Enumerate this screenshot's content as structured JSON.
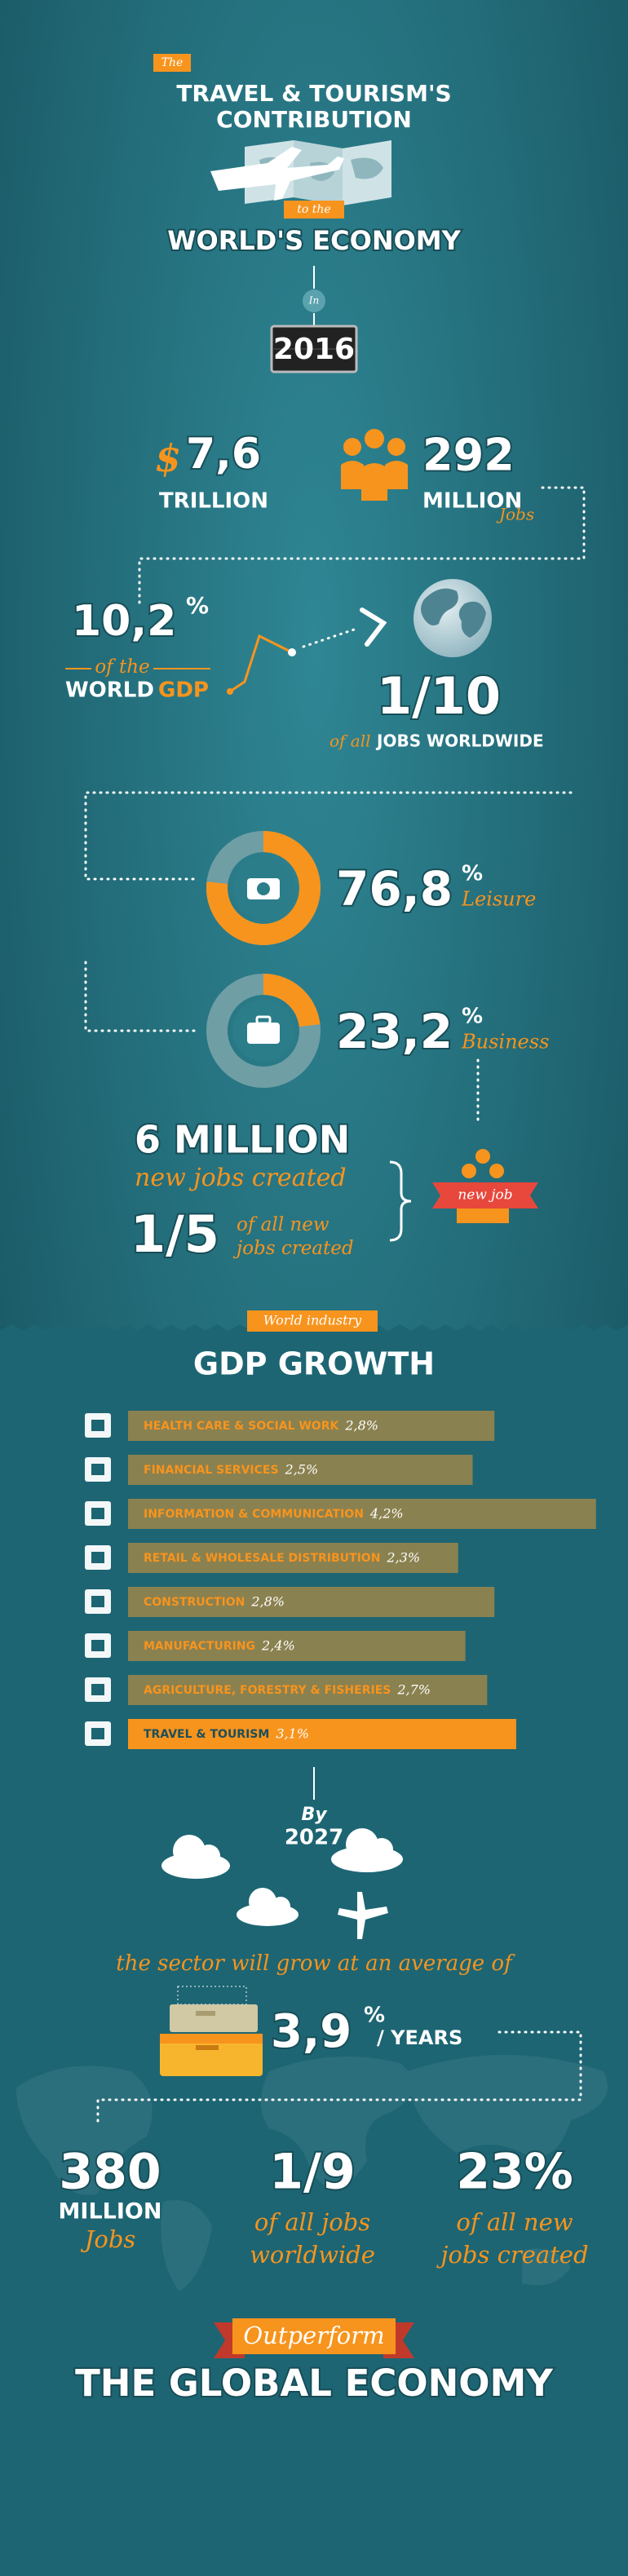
{
  "header": {
    "tag": "The",
    "title": [
      "TRAVEL & TOURISM'S",
      "CONTRIBUTION"
    ],
    "tag2": "to the",
    "subtitle": "WORLD'S ECONOMY",
    "in": "In",
    "year": "2016"
  },
  "economy": {
    "currency": "$",
    "gdp": "7,6",
    "gdp_unit": "TRILLION",
    "jobs": "292",
    "jobs_unit": "MILLION",
    "jobs_note": "Jobs"
  },
  "share": {
    "gdp": "10,2",
    "gdp_unit": "%",
    "of_the": "of the",
    "world": "WORLD",
    "gdp_label": "GDP",
    "jobs": "1/10",
    "jobs_prefix": "of all",
    "jobs_label": "JOBS WORLDWIDE"
  },
  "spending": [
    {
      "value": 76.8,
      "label": "76,8",
      "unit": "%",
      "name": "Leisure"
    },
    {
      "value": 23.2,
      "label": "23,2",
      "unit": "%",
      "name": "Business"
    }
  ],
  "new_jobs": {
    "amount": "6 MILLION",
    "caption": "new jobs created",
    "fraction": "1/5",
    "note": [
      "of all new",
      "jobs created"
    ],
    "ribbon": "new job"
  },
  "growth": {
    "tag": "World industry",
    "title": "GDP GROWTH",
    "items": [
      {
        "name": "HEALTH CARE & SOCIAL WORK",
        "value": 2.8,
        "value_label": "2,8%",
        "color": "#8a8150"
      },
      {
        "name": "FINANCIAL SERVICES",
        "value": 2.5,
        "value_label": "2,5%",
        "color": "#8a8150"
      },
      {
        "name": "INFORMATION & COMMUNICATION",
        "value": 4.2,
        "value_label": "4,2%",
        "color": "#8a8150"
      },
      {
        "name": "RETAIL & WHOLESALE DISTRIBUTION",
        "value": 2.3,
        "value_label": "2,3%",
        "color": "#8a8150"
      },
      {
        "name": "CONSTRUCTION",
        "value": 2.8,
        "value_label": "2,8%",
        "color": "#8a8150"
      },
      {
        "name": "MANUFACTURING",
        "value": 2.4,
        "value_label": "2,4%",
        "color": "#8a8150"
      },
      {
        "name": "AGRICULTURE, FORESTRY & FISHERIES",
        "value": 2.7,
        "value_label": "2,7%",
        "color": "#8a8150"
      },
      {
        "name": "TRAVEL & TOURISM",
        "value": 3.1,
        "value_label": "3,1%",
        "color": "#f7941d"
      }
    ]
  },
  "forecast": {
    "by": "By",
    "year": "2027",
    "sentence": "the sector will grow at an average of",
    "rate": "3,9",
    "rate_unit": "%",
    "rate_label": "/ YEARS",
    "stats": [
      {
        "value": "380",
        "unit": "MILLION",
        "note": [
          "Jobs"
        ]
      },
      {
        "value": "1/9",
        "note": [
          "of all jobs",
          "worldwide"
        ]
      },
      {
        "value": "23%",
        "note": [
          "of all new",
          "jobs created"
        ]
      }
    ],
    "ribbon": "Outperform",
    "closing": "THE GLOBAL ECONOMY"
  }
}
